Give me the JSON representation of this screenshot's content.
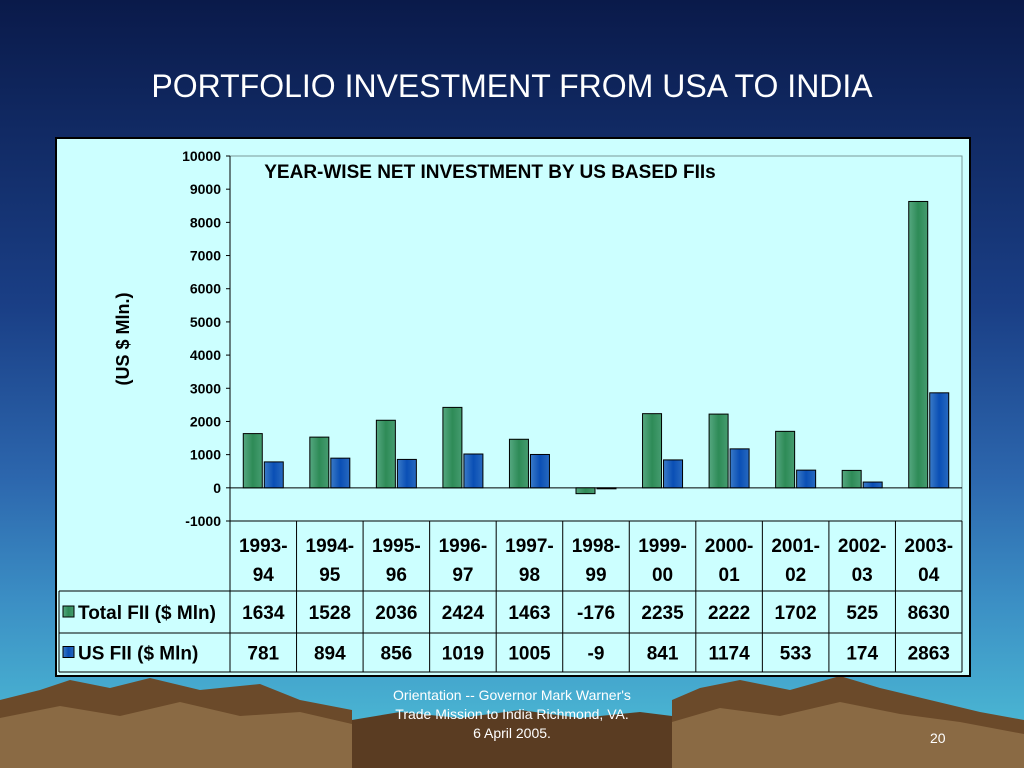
{
  "slide": {
    "title": "PORTFOLIO INVESTMENT FROM USA TO INDIA",
    "footer_lines": [
      "Orientation -- Governor Mark Warner's",
      "Trade Mission to India Richmond, VA.",
      "6 April 2005."
    ],
    "slide_number": "20"
  },
  "colors": {
    "total_fii": "#2e8b57",
    "us_fii": "#0a4fb5",
    "plot_background": "#ccffff"
  },
  "chart_data": {
    "type": "bar",
    "title": "YEAR-WISE NET INVESTMENT BY US BASED FIIs",
    "ylabel": "(US $ Mln.)",
    "xlabel": "",
    "ylim": [
      -1000,
      10000
    ],
    "yticks": [
      -1000,
      0,
      1000,
      2000,
      3000,
      4000,
      5000,
      6000,
      7000,
      8000,
      9000,
      10000
    ],
    "grid": false,
    "legend": "data-table",
    "categories": [
      [
        "1993-",
        "94"
      ],
      [
        "1994-",
        "95"
      ],
      [
        "1995-",
        "96"
      ],
      [
        "1996-",
        "97"
      ],
      [
        "1997-",
        "98"
      ],
      [
        "1998-",
        "99"
      ],
      [
        "1999-",
        "00"
      ],
      [
        "2000-",
        "01"
      ],
      [
        "2001-",
        "02"
      ],
      [
        "2002-",
        "03"
      ],
      [
        "2003-",
        "04"
      ]
    ],
    "series": [
      {
        "name": "Total FII ($ Mln)",
        "color": "#2e8b57",
        "values": [
          1634,
          1528,
          2036,
          2424,
          1463,
          -176,
          2235,
          2222,
          1702,
          525,
          8630
        ]
      },
      {
        "name": "US FII ($ Mln)",
        "color": "#0a4fb5",
        "values": [
          781,
          894,
          856,
          1019,
          1005,
          -9,
          841,
          1174,
          533,
          174,
          2863
        ]
      }
    ]
  }
}
